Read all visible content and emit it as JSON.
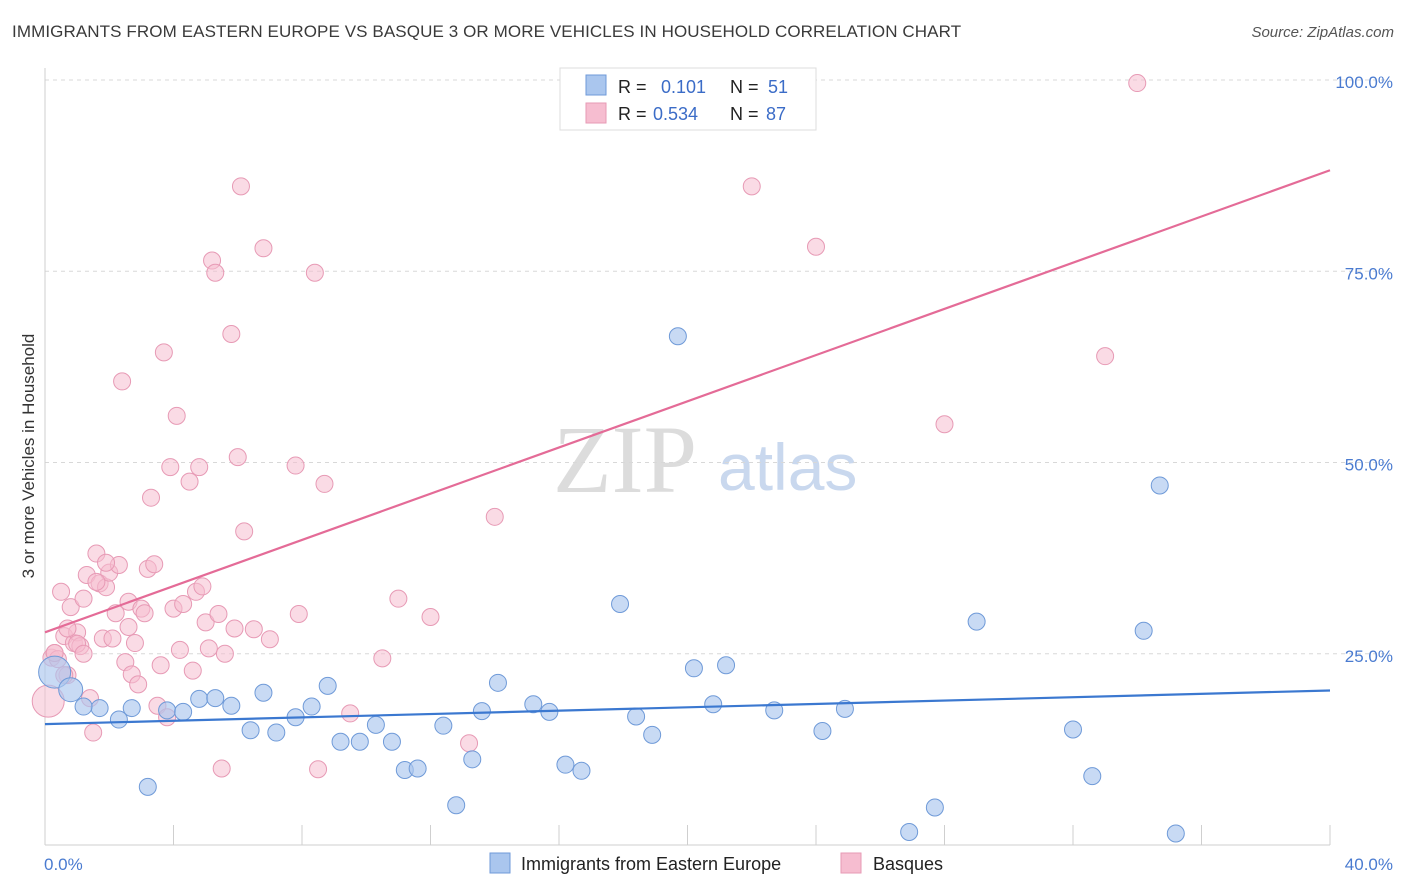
{
  "header": {
    "title": "IMMIGRANTS FROM EASTERN EUROPE VS BASQUE 3 OR MORE VEHICLES IN HOUSEHOLD CORRELATION CHART",
    "source": "Source: ZipAtlas.com"
  },
  "watermark": {
    "zip": "ZIP",
    "atlas": "atlas"
  },
  "colors": {
    "blue": "#3b78d0",
    "pink": "#e46b97",
    "blue_fill": "#aac6ee",
    "pink_fill": "#f6bdd0"
  },
  "chart_data": {
    "type": "scatter",
    "title": "IMMIGRANTS FROM EASTERN EUROPE VS BASQUE 3 OR MORE VEHICLES IN HOUSEHOLD CORRELATION CHART",
    "xlabel": "",
    "ylabel": "3 or more Vehicles in Household",
    "xlim": [
      0,
      40
    ],
    "ylim": [
      0,
      100
    ],
    "x_tick_labels": [
      "0.0%",
      "40.0%"
    ],
    "y_ticks": [
      25,
      50,
      75,
      100
    ],
    "y_tick_labels": [
      "25.0%",
      "50.0%",
      "75.0%",
      "100.0%"
    ],
    "legend": [
      {
        "r_label": "R =",
        "r_value": "0.101",
        "n_label": "N =",
        "n_value": "51"
      },
      {
        "r_label": "R =",
        "r_value": "0.534",
        "n_label": "N =",
        "n_value": "87"
      }
    ],
    "series": [
      {
        "name": "Immigrants from Eastern Europe",
        "color": "#3b78d0",
        "trend": {
          "x": [
            0,
            40
          ],
          "y": [
            15.8,
            20.2
          ]
        },
        "points": [
          [
            0.3,
            22.6
          ],
          [
            0.8,
            20.3
          ],
          [
            1.7,
            17.9
          ],
          [
            2.3,
            16.4
          ],
          [
            2.7,
            17.9
          ],
          [
            3.2,
            7.6
          ],
          [
            3.8,
            17.6
          ],
          [
            4.3,
            17.4
          ],
          [
            4.8,
            19.1
          ],
          [
            5.3,
            19.2
          ],
          [
            5.8,
            18.2
          ],
          [
            6.4,
            15.0
          ],
          [
            6.8,
            19.9
          ],
          [
            7.2,
            14.7
          ],
          [
            7.8,
            16.7
          ],
          [
            8.3,
            18.1
          ],
          [
            8.8,
            20.8
          ],
          [
            9.2,
            13.5
          ],
          [
            9.8,
            13.5
          ],
          [
            10.3,
            15.7
          ],
          [
            10.8,
            13.5
          ],
          [
            11.2,
            9.8
          ],
          [
            11.6,
            10.0
          ],
          [
            12.4,
            15.6
          ],
          [
            12.8,
            5.2
          ],
          [
            13.3,
            11.2
          ],
          [
            13.6,
            17.5
          ],
          [
            14.1,
            21.2
          ],
          [
            15.2,
            18.4
          ],
          [
            15.7,
            17.4
          ],
          [
            16.2,
            10.5
          ],
          [
            16.7,
            9.7
          ],
          [
            17.9,
            31.5
          ],
          [
            18.4,
            16.8
          ],
          [
            18.9,
            14.4
          ],
          [
            19.7,
            66.5
          ],
          [
            20.2,
            23.1
          ],
          [
            20.8,
            18.4
          ],
          [
            21.2,
            23.5
          ],
          [
            22.7,
            17.6
          ],
          [
            24.2,
            14.9
          ],
          [
            24.9,
            17.8
          ],
          [
            26.9,
            1.7
          ],
          [
            27.7,
            4.9
          ],
          [
            29.0,
            29.2
          ],
          [
            32.0,
            15.1
          ],
          [
            32.6,
            9.0
          ],
          [
            34.2,
            28.0
          ],
          [
            34.7,
            47.0
          ],
          [
            35.2,
            1.5
          ],
          [
            1.2,
            18.1
          ]
        ]
      },
      {
        "name": "Basques",
        "color": "#e46b97",
        "trend": {
          "x": [
            0,
            40
          ],
          "y": [
            27.8,
            88.2
          ]
        },
        "points": [
          [
            0.1,
            18.8
          ],
          [
            0.2,
            24.5
          ],
          [
            0.3,
            25.1
          ],
          [
            0.4,
            24.3
          ],
          [
            0.5,
            33.1
          ],
          [
            0.6,
            27.3
          ],
          [
            0.7,
            22.2
          ],
          [
            0.8,
            31.1
          ],
          [
            0.9,
            26.4
          ],
          [
            1.0,
            27.8
          ],
          [
            1.1,
            26.0
          ],
          [
            1.2,
            32.2
          ],
          [
            1.3,
            35.3
          ],
          [
            1.4,
            19.2
          ],
          [
            1.5,
            14.7
          ],
          [
            1.6,
            38.1
          ],
          [
            1.7,
            34.2
          ],
          [
            1.8,
            27.0
          ],
          [
            1.9,
            33.7
          ],
          [
            2.0,
            35.6
          ],
          [
            2.1,
            27.0
          ],
          [
            2.2,
            30.3
          ],
          [
            2.3,
            36.6
          ],
          [
            2.4,
            60.6
          ],
          [
            2.5,
            23.9
          ],
          [
            2.6,
            31.8
          ],
          [
            2.7,
            22.3
          ],
          [
            2.8,
            26.4
          ],
          [
            2.9,
            21.0
          ],
          [
            3.0,
            30.9
          ],
          [
            3.1,
            30.3
          ],
          [
            3.2,
            36.1
          ],
          [
            3.3,
            45.4
          ],
          [
            3.4,
            36.7
          ],
          [
            3.5,
            18.2
          ],
          [
            3.6,
            23.5
          ],
          [
            3.7,
            64.4
          ],
          [
            3.8,
            16.7
          ],
          [
            3.9,
            49.4
          ],
          [
            4.0,
            30.9
          ],
          [
            4.1,
            56.1
          ],
          [
            4.2,
            25.5
          ],
          [
            4.3,
            31.5
          ],
          [
            4.5,
            47.5
          ],
          [
            4.6,
            22.8
          ],
          [
            4.7,
            33.1
          ],
          [
            4.8,
            49.4
          ],
          [
            4.9,
            33.8
          ],
          [
            5.0,
            29.1
          ],
          [
            5.1,
            25.7
          ],
          [
            5.2,
            76.4
          ],
          [
            5.3,
            74.8
          ],
          [
            5.4,
            30.2
          ],
          [
            5.5,
            10.0
          ],
          [
            5.6,
            25.0
          ],
          [
            5.8,
            66.8
          ],
          [
            5.9,
            28.3
          ],
          [
            6.0,
            50.7
          ],
          [
            6.1,
            86.1
          ],
          [
            6.2,
            41.0
          ],
          [
            6.5,
            28.2
          ],
          [
            6.8,
            78.0
          ],
          [
            7.0,
            26.9
          ],
          [
            7.8,
            49.6
          ],
          [
            7.9,
            30.2
          ],
          [
            8.4,
            74.8
          ],
          [
            8.5,
            9.9
          ],
          [
            8.7,
            47.2
          ],
          [
            9.5,
            17.2
          ],
          [
            10.5,
            24.4
          ],
          [
            11.0,
            32.2
          ],
          [
            12.0,
            29.8
          ],
          [
            13.2,
            13.3
          ],
          [
            14.0,
            42.9
          ],
          [
            22.0,
            86.1
          ],
          [
            24.0,
            78.2
          ],
          [
            28.0,
            55.0
          ],
          [
            33.0,
            63.9
          ],
          [
            34.0,
            99.6
          ],
          [
            0.6,
            22.2
          ],
          [
            1.0,
            26.3
          ],
          [
            1.6,
            34.4
          ],
          [
            2.6,
            28.5
          ],
          [
            0.3,
            25.1
          ],
          [
            0.7,
            28.3
          ],
          [
            1.2,
            25.0
          ],
          [
            1.9,
            36.9
          ]
        ]
      }
    ]
  },
  "bottom_legend": [
    {
      "label": "Immigrants from Eastern Europe"
    },
    {
      "label": "Basques"
    }
  ]
}
